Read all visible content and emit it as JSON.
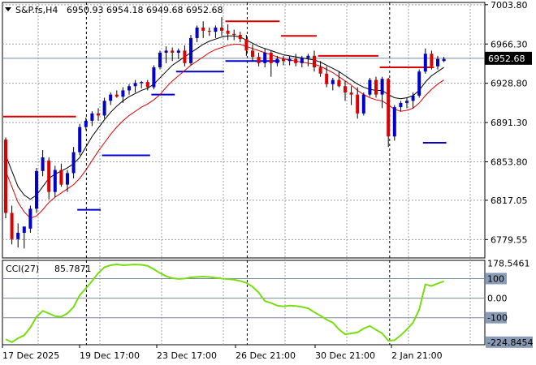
{
  "header": {
    "symbol": "S&P.fs,H4",
    "ohlc": "6950.93 6954.18 6949.68 6952.68"
  },
  "colors": {
    "bull": "#0000cc",
    "bear": "#dd0000",
    "cci_line": "#77dd11",
    "ma_black": "#000000",
    "ma_red": "#dd0000",
    "price_tag_bg": "#000000"
  },
  "chart_data": [
    {
      "type": "candlestick",
      "title": "",
      "xlabel": "",
      "ylabel": "",
      "ylim": [
        6762,
        7006
      ],
      "y_ticks": [
        "7003.80",
        "6966.30",
        "6928.80",
        "6891.30",
        "6853.80",
        "6817.05",
        "6779.55"
      ],
      "current_price": "6952.68",
      "x_ticks": [
        "17 Dec 2025",
        "19 Dec 17:00",
        "23 Dec 17:00",
        "26 Dec 21:00",
        "30 Dec 21:00",
        "2 Jan 21:00"
      ],
      "grid": true,
      "candles": [
        [
          6875,
          6877,
          6800,
          6805
        ],
        [
          6805,
          6812,
          6775,
          6780
        ],
        [
          6780,
          6795,
          6772,
          6786
        ],
        [
          6786,
          6790,
          6771,
          6792
        ],
        [
          6790,
          6812,
          6786,
          6809
        ],
        [
          6809,
          6848,
          6805,
          6845
        ],
        [
          6845,
          6865,
          6840,
          6858
        ],
        [
          6855,
          6858,
          6818,
          6825
        ],
        [
          6825,
          6850,
          6820,
          6846
        ],
        [
          6846,
          6852,
          6830,
          6832
        ],
        [
          6832,
          6846,
          6825,
          6843
        ],
        [
          6843,
          6868,
          6838,
          6863
        ],
        [
          6863,
          6890,
          6860,
          6887
        ],
        [
          6887,
          6896,
          6884,
          6893
        ],
        [
          6893,
          6902,
          6888,
          6900
        ],
        [
          6900,
          6905,
          6893,
          6898
        ],
        [
          6898,
          6915,
          6895,
          6912
        ],
        [
          6912,
          6920,
          6908,
          6918
        ],
        [
          6918,
          6922,
          6915,
          6916
        ],
        [
          6916,
          6925,
          6910,
          6922
        ],
        [
          6922,
          6928,
          6918,
          6926
        ],
        [
          6926,
          6932,
          6920,
          6929
        ],
        [
          6929,
          6931,
          6924,
          6930
        ],
        [
          6930,
          6932,
          6922,
          6925
        ],
        [
          6925,
          6946,
          6923,
          6944
        ],
        [
          6944,
          6960,
          6942,
          6958
        ],
        [
          6958,
          6964,
          6948,
          6960
        ],
        [
          6960,
          6963,
          6950,
          6958
        ],
        [
          6958,
          6962,
          6952,
          6960
        ],
        [
          6960,
          6965,
          6945,
          6948
        ],
        [
          6948,
          6975,
          6946,
          6972
        ],
        [
          6972,
          6984,
          6968,
          6982
        ],
        [
          6982,
          6988,
          6972,
          6979
        ],
        [
          6979,
          6982,
          6974,
          6978
        ],
        [
          6978,
          6984,
          6972,
          6982
        ],
        [
          6982,
          6992,
          6974,
          6979
        ],
        [
          6979,
          6985,
          6970,
          6976
        ],
        [
          6976,
          6980,
          6970,
          6975
        ],
        [
          6975,
          6978,
          6968,
          6971
        ],
        [
          6971,
          6975,
          6955,
          6960
        ],
        [
          6960,
          6966,
          6950,
          6954
        ],
        [
          6954,
          6958,
          6945,
          6948
        ],
        [
          6948,
          6962,
          6944,
          6958
        ],
        [
          6958,
          6960,
          6935,
          6948
        ],
        [
          6948,
          6955,
          6945,
          6952
        ],
        [
          6952,
          6955,
          6946,
          6950
        ],
        [
          6950,
          6955,
          6946,
          6952
        ],
        [
          6952,
          6957,
          6945,
          6948
        ],
        [
          6948,
          6955,
          6944,
          6953
        ],
        [
          6953,
          6957,
          6945,
          6955
        ],
        [
          6955,
          6960,
          6940,
          6944
        ],
        [
          6944,
          6950,
          6935,
          6938
        ],
        [
          6938,
          6945,
          6925,
          6928
        ],
        [
          6928,
          6934,
          6922,
          6932
        ],
        [
          6932,
          6940,
          6925,
          6926
        ],
        [
          6926,
          6931,
          6912,
          6920
        ],
        [
          6920,
          6926,
          6908,
          6918
        ],
        [
          6918,
          6925,
          6895,
          6900
        ],
        [
          6900,
          6920,
          6898,
          6918
        ],
        [
          6918,
          6934,
          6916,
          6932
        ],
        [
          6932,
          6935,
          6915,
          6918
        ],
        [
          6918,
          6935,
          6905,
          6933
        ],
        [
          6933,
          6934,
          6868,
          6878
        ],
        [
          6878,
          6908,
          6874,
          6906
        ],
        [
          6906,
          6912,
          6902,
          6910
        ],
        [
          6910,
          6915,
          6905,
          6912
        ],
        [
          6912,
          6920,
          6905,
          6917
        ],
        [
          6917,
          6942,
          6915,
          6940
        ],
        [
          6940,
          6962,
          6938,
          6957
        ],
        [
          6957,
          6960,
          6942,
          6945
        ],
        [
          6945,
          6955,
          6942,
          6952
        ],
        [
          6950,
          6954,
          6949,
          6952
        ]
      ],
      "ma_black": [
        6860,
        6845,
        6830,
        6822,
        6818,
        6822,
        6830,
        6838,
        6842,
        6845,
        6848,
        6852,
        6858,
        6868,
        6878,
        6886,
        6894,
        6901,
        6907,
        6912,
        6916,
        6919,
        6922,
        6924,
        6928,
        6934,
        6940,
        6946,
        6950,
        6954,
        6958,
        6962,
        6966,
        6969,
        6971,
        6973,
        6974,
        6974,
        6973,
        6970,
        6967,
        6964,
        6962,
        6960,
        6958,
        6956,
        6955,
        6954,
        6953,
        6952,
        6951,
        6949,
        6946,
        6943,
        6940,
        6936,
        6932,
        6928,
        6925,
        6923,
        6922,
        6922,
        6918,
        6915,
        6914,
        6915,
        6917,
        6922,
        6930,
        6936,
        6940,
        6944
      ],
      "ma_red": [
        6845,
        6830,
        6815,
        6806,
        6800,
        6802,
        6808,
        6815,
        6820,
        6824,
        6828,
        6832,
        6838,
        6846,
        6855,
        6864,
        6872,
        6880,
        6887,
        6893,
        6898,
        6902,
        6906,
        6909,
        6913,
        6918,
        6925,
        6931,
        6936,
        6941,
        6946,
        6950,
        6954,
        6958,
        6961,
        6963,
        6965,
        6966,
        6966,
        6964,
        6962,
        6960,
        6958,
        6956,
        6954,
        6952,
        6951,
        6950,
        6949,
        6948,
        6947,
        6945,
        6942,
        6939,
        6935,
        6931,
        6927,
        6922,
        6918,
        6915,
        6913,
        6912,
        6908,
        6904,
        6902,
        6903,
        6905,
        6910,
        6917,
        6923,
        6928,
        6932
      ],
      "stop_levels": [
        {
          "from": 0,
          "to": 11,
          "side": "upper",
          "value": "6897"
        },
        {
          "from": 12,
          "to": 15,
          "side": "lower",
          "value": "6808"
        },
        {
          "from": 16,
          "to": 23,
          "side": "lower",
          "value": "6860"
        },
        {
          "from": 24,
          "to": 27,
          "side": "lower",
          "value": "6918"
        },
        {
          "from": 28,
          "to": 35,
          "side": "lower",
          "value": "6940"
        },
        {
          "from": 36,
          "to": 44,
          "side": "lower",
          "value": "6950"
        },
        {
          "from": 36,
          "to": 44,
          "side": "upper",
          "value": "6988"
        },
        {
          "from": 45,
          "to": 50,
          "side": "upper",
          "value": "6974"
        },
        {
          "from": 51,
          "to": 60,
          "side": "upper",
          "value": "6955"
        },
        {
          "from": 61,
          "to": 69,
          "side": "upper",
          "value": "6944"
        },
        {
          "from": 68,
          "to": 71,
          "side": "lower",
          "value": "6872"
        }
      ]
    },
    {
      "type": "line",
      "title": "",
      "label": "CCI(27)",
      "value_text": "85.7871",
      "ylim": [
        -238,
        193
      ],
      "y_ticks": [
        "178.5461",
        "100",
        "0.00",
        "-100",
        "-224.8454"
      ],
      "levels": [
        100,
        0,
        -100
      ],
      "values": [
        -210,
        -225,
        -205,
        -190,
        -150,
        -95,
        -65,
        -78,
        -92,
        -95,
        -78,
        -45,
        15,
        50,
        88,
        128,
        158,
        168,
        173,
        168,
        170,
        172,
        170,
        165,
        148,
        128,
        112,
        102,
        98,
        100,
        106,
        108,
        110,
        108,
        104,
        100,
        97,
        94,
        88,
        78,
        58,
        28,
        -15,
        -25,
        -38,
        -42,
        -38,
        -40,
        -45,
        -52,
        -72,
        -90,
        -110,
        -125,
        -160,
        -185,
        -180,
        -175,
        -155,
        -142,
        -162,
        -180,
        -218,
        -215,
        -190,
        -160,
        -125,
        -58,
        70,
        62,
        75,
        86
      ]
    }
  ]
}
